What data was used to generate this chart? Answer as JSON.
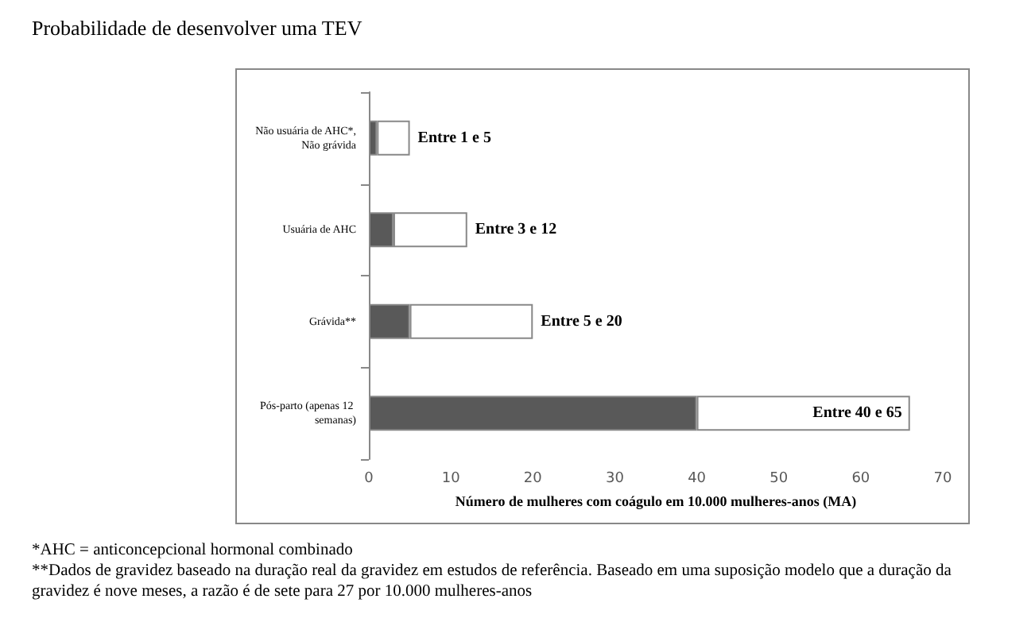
{
  "chart_data": {
    "type": "bar",
    "orientation": "horizontal",
    "stacked": true,
    "title": "Probabilidade de desenvolver uma TEV",
    "xlabel": "Número de mulheres com coágulo em 10.000 mulheres-anos (MA)",
    "categories": [
      "Não usuária de AHC*, Não grávida",
      "Usuária de AHC",
      "Grávida**",
      "Pós-parto (apenas 12 semanas)"
    ],
    "series": [
      {
        "color": "#595959",
        "values": [
          1,
          3,
          5,
          40
        ]
      },
      {
        "color": "#ffffff",
        "values": [
          4,
          9,
          15,
          26
        ],
        "value_labels": [
          "Entre 1 e 5",
          "Entre 3 e 12",
          "Entre 5 e 20",
          "Entre 40 e 65"
        ]
      }
    ],
    "xlim": [
      0,
      70
    ],
    "xticks": [
      0,
      10,
      20,
      30,
      40,
      50,
      60,
      70
    ],
    "grid": false,
    "annotations": [
      "*AHC = anticoncepcional hormonal combinado",
      "**Dados de gravidez baseado na duração real da gravidez em estudos de referência.  Baseado em uma  suposição modelo que a duração da gravidez é nove meses, a razão é de sete para 27 por 10.000 mulheres-anos"
    ]
  }
}
